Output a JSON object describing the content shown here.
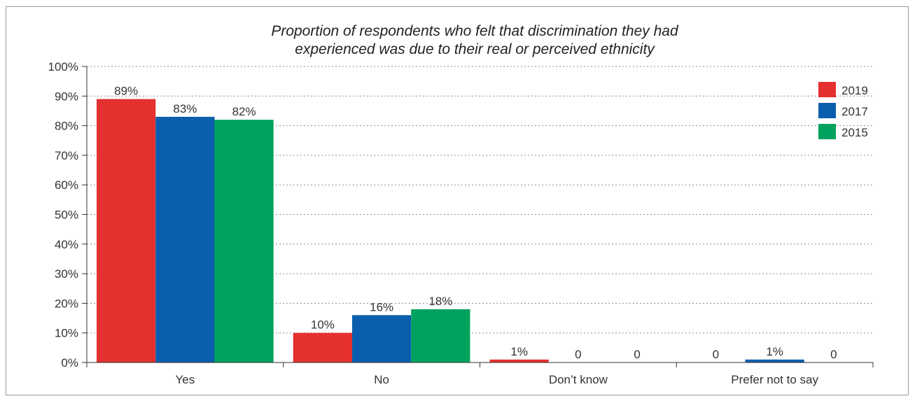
{
  "chart_data": {
    "type": "bar",
    "title_lines": [
      "Proportion of respondents who felt that discrimination they had",
      "experienced was due to their real or perceived ethnicity"
    ],
    "categories": [
      "Yes",
      "No",
      "Don’t know",
      "Prefer not to say"
    ],
    "series": [
      {
        "name": "2019",
        "color": "#e53030",
        "values": [
          89,
          10,
          1,
          0
        ],
        "labels": [
          "89%",
          "10%",
          "1%",
          "0"
        ]
      },
      {
        "name": "2017",
        "color": "#0a5ead",
        "values": [
          83,
          16,
          0,
          1
        ],
        "labels": [
          "83%",
          "16%",
          "0",
          "1%"
        ]
      },
      {
        "name": "2015",
        "color": "#00a35e",
        "values": [
          82,
          18,
          0,
          0
        ],
        "labels": [
          "82%",
          "18%",
          "0",
          "0"
        ]
      }
    ],
    "y_ticks": [
      "0%",
      "10%",
      "20%",
      "30%",
      "40%",
      "50%",
      "60%",
      "70%",
      "80%",
      "90%",
      "100%"
    ],
    "ylim": [
      0,
      100
    ],
    "grid": "dotted horizontal",
    "legend_position": "top-right",
    "xlabel": "",
    "ylabel": ""
  }
}
